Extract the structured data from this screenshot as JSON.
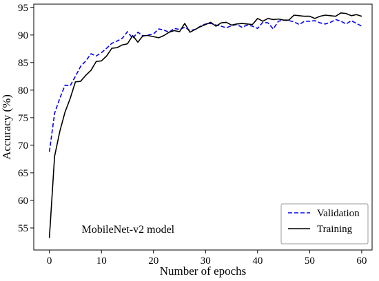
{
  "chart_data": {
    "type": "line",
    "title": "",
    "xlabel": "Number of epochs",
    "ylabel": "Accuracy (%)",
    "xlim": [
      -3,
      62
    ],
    "ylim": [
      51,
      95.6
    ],
    "xticks": [
      0,
      10,
      20,
      30,
      40,
      50,
      60
    ],
    "yticks": [
      55,
      60,
      65,
      70,
      75,
      80,
      85,
      90,
      95
    ],
    "grid": false,
    "legend_position": "bottom-right",
    "annotation": "MobileNet-v2 model",
    "x": [
      0,
      1,
      2,
      3,
      4,
      5,
      6,
      7,
      8,
      9,
      10,
      11,
      12,
      13,
      14,
      15,
      16,
      17,
      18,
      19,
      20,
      21,
      22,
      23,
      24,
      25,
      26,
      27,
      28,
      29,
      30,
      31,
      32,
      33,
      34,
      35,
      36,
      37,
      38,
      39,
      40,
      41,
      42,
      43,
      44,
      45,
      46,
      47,
      48,
      49,
      50,
      51,
      52,
      53,
      54,
      55,
      56,
      57,
      58,
      59,
      60
    ],
    "series": [
      {
        "name": "Validation",
        "color": "#0000ee",
        "style": "dashed",
        "values": [
          68.8,
          75.8,
          78.5,
          80.9,
          80.8,
          82.5,
          84.3,
          85.3,
          86.6,
          86.2,
          86.8,
          87.6,
          88.5,
          88.9,
          89.4,
          90.6,
          89.4,
          90.5,
          89.8,
          90.0,
          90.2,
          91.1,
          90.9,
          90.5,
          91.2,
          91.0,
          91.4,
          90.8,
          91.0,
          91.6,
          92.0,
          92.1,
          91.8,
          91.6,
          91.3,
          91.7,
          91.9,
          91.4,
          91.8,
          91.6,
          91.2,
          92.3,
          92.2,
          91.1,
          92.5,
          92.7,
          92.6,
          92.4,
          91.9,
          92.5,
          92.5,
          92.6,
          92.2,
          92.0,
          92.3,
          92.8,
          92.5,
          92.0,
          92.6,
          92.1,
          91.6
        ]
      },
      {
        "name": "Training",
        "color": "#000000",
        "style": "solid",
        "values": [
          53.2,
          68.0,
          72.5,
          76.0,
          78.5,
          81.5,
          81.6,
          82.7,
          83.6,
          85.2,
          85.3,
          86.2,
          87.6,
          87.7,
          88.2,
          88.4,
          89.9,
          88.7,
          89.9,
          89.9,
          89.7,
          89.5,
          89.9,
          90.5,
          90.8,
          90.6,
          92.1,
          90.5,
          91.0,
          91.5,
          91.9,
          92.3,
          91.6,
          92.2,
          92.3,
          91.8,
          92.0,
          92.1,
          92.0,
          91.9,
          93.0,
          92.5,
          93.0,
          92.8,
          92.9,
          92.7,
          92.7,
          93.6,
          93.5,
          93.4,
          93.4,
          93.0,
          93.4,
          93.6,
          93.5,
          93.4,
          94.0,
          93.9,
          93.5,
          93.7,
          93.4
        ]
      }
    ]
  }
}
